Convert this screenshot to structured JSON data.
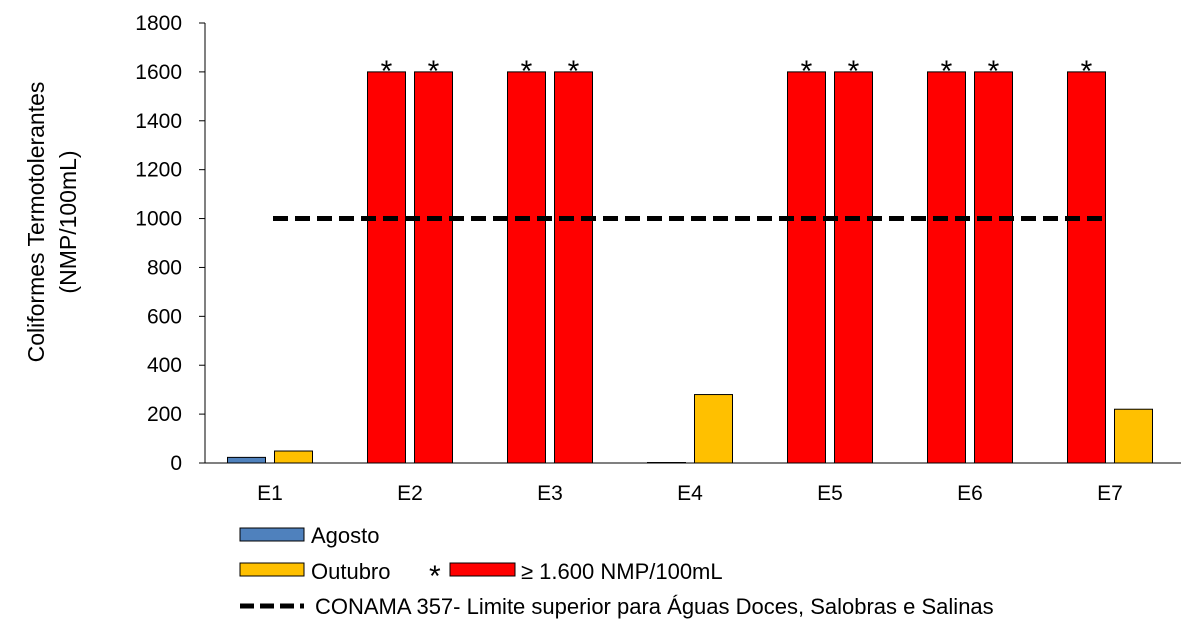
{
  "chart_data": {
    "type": "bar",
    "ylabel_line1": "Coliformes Termotolerantes",
    "ylabel_line2": "(NMP/100mL)",
    "ylim": [
      0,
      1800
    ],
    "y_ticks": [
      0,
      200,
      400,
      600,
      800,
      1000,
      1200,
      1400,
      1600,
      1800
    ],
    "categories": [
      "E1",
      "E2",
      "E3",
      "E4",
      "E5",
      "E6",
      "E7"
    ],
    "series": [
      {
        "name": "Agosto",
        "color": "#4f81bd",
        "values": [
          23,
          1600,
          1600,
          2,
          1600,
          1600,
          1600
        ],
        "saturated": [
          false,
          true,
          true,
          false,
          true,
          true,
          true
        ]
      },
      {
        "name": "Outubro",
        "color": "#ffc000",
        "values": [
          49,
          1600,
          1600,
          280,
          1600,
          1600,
          220
        ],
        "saturated": [
          false,
          true,
          true,
          false,
          true,
          true,
          false
        ]
      }
    ],
    "saturated_color": "#ff0000",
    "saturated_marker": "*",
    "reference_line": {
      "value": 1000,
      "name": "CONAMA 357- Limite superior para Águas Doces, Salobras e Salinas",
      "color": "#000000"
    },
    "legend": [
      {
        "label": "Agosto",
        "color": "#4f81bd"
      },
      {
        "label": "Outubro",
        "color": "#ffc000"
      },
      {
        "label": "≥ 1.600 NMP/100mL",
        "color": "#ff0000",
        "marker": "*"
      },
      {
        "label": "CONAMA 357- Limite superior para Águas Doces, Salobras e Salinas",
        "style": "dashed"
      }
    ],
    "grid": false
  }
}
